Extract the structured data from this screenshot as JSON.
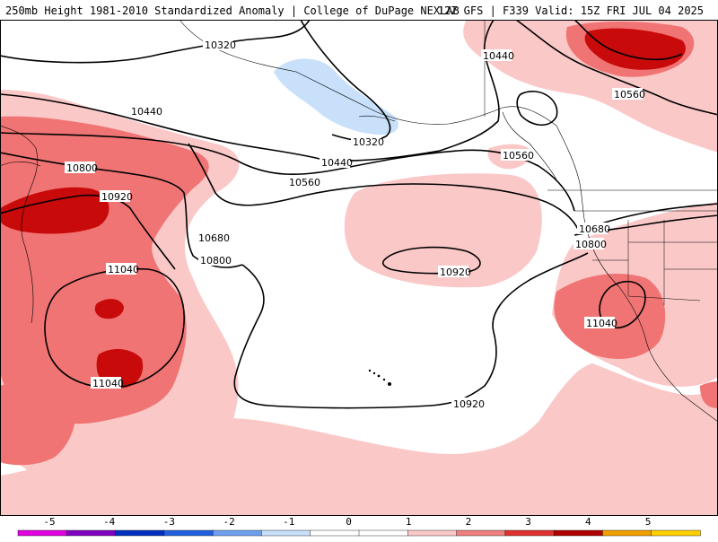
{
  "header": {
    "title_left": "250mb Height 1981-2010 Standardized Anomaly | College of DuPage NEXLAB",
    "title_right": "12Z GFS | F339 Valid: 15Z FRI JUL 04 2025"
  },
  "map": {
    "contours": [
      {
        "label": "10320"
      },
      {
        "label": "10440"
      },
      {
        "label": "10440"
      },
      {
        "label": "10320"
      },
      {
        "label": "10440"
      },
      {
        "label": "10560"
      },
      {
        "label": "10560"
      },
      {
        "label": "10560"
      },
      {
        "label": "10800"
      },
      {
        "label": "10920"
      },
      {
        "label": "10680"
      },
      {
        "label": "10800"
      },
      {
        "label": "11040"
      },
      {
        "label": "10920"
      },
      {
        "label": "11040"
      },
      {
        "label": "10680"
      },
      {
        "label": "10800"
      },
      {
        "label": "11040"
      },
      {
        "label": "10920"
      }
    ]
  },
  "colorbar": {
    "ticks": [
      "-5",
      "-4",
      "-3",
      "-2",
      "-1",
      "0",
      "1",
      "2",
      "3",
      "4",
      "5"
    ],
    "colors": [
      "#e000e0",
      "#8000c0",
      "#0030c0",
      "#2060e0",
      "#6ea0f0",
      "#c8e0fa",
      "#ffffff",
      "#ffffff",
      "#fbc8c8",
      "#f08080",
      "#e03030",
      "#b00000",
      "#f0a000",
      "#ffd000"
    ]
  }
}
